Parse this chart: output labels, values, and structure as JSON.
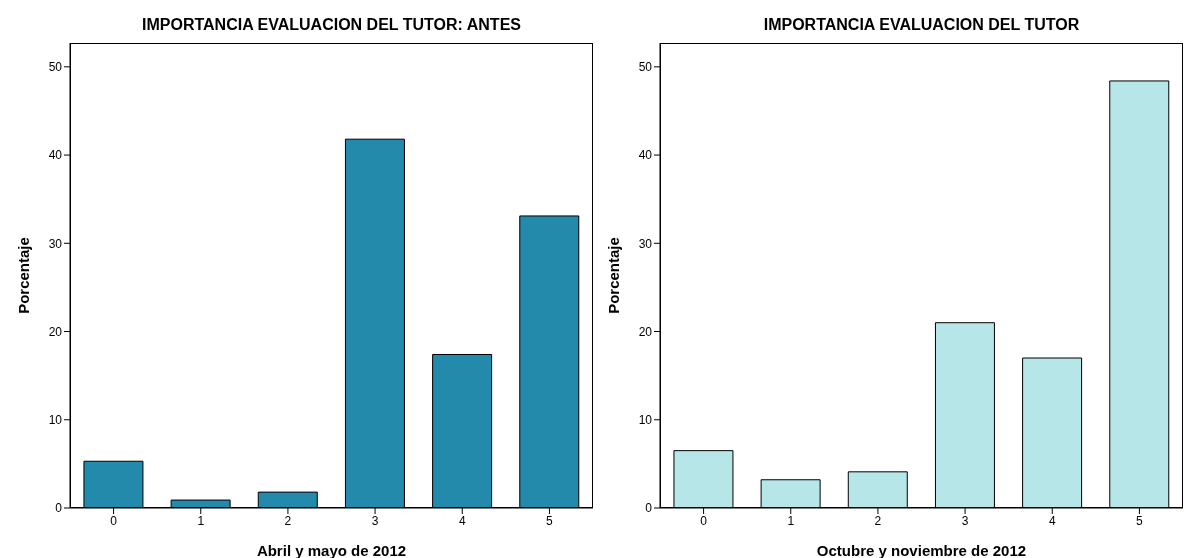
{
  "chart_data": [
    {
      "type": "bar",
      "title": "IMPORTANCIA EVALUACION DEL TUTOR: ANTES",
      "xlabel": "Abril y mayo de 2012",
      "ylabel": "Porcentaje",
      "categories": [
        "0",
        "1",
        "2",
        "3",
        "4",
        "5"
      ],
      "values": [
        5.3,
        0.9,
        1.8,
        41.8,
        17.4,
        33.1
      ],
      "color": "#238aab",
      "ylim": [
        0,
        52.7
      ],
      "yticks": [
        0,
        10,
        20,
        30,
        40,
        50
      ],
      "grid": false,
      "legend": false
    },
    {
      "type": "bar",
      "title": "IMPORTANCIA EVALUACION DEL TUTOR",
      "xlabel": "Octubre y noviembre de 2012",
      "ylabel": "Porcentaje",
      "categories": [
        "0",
        "1",
        "2",
        "3",
        "4",
        "5"
      ],
      "values": [
        6.5,
        3.2,
        4.1,
        21.0,
        17.0,
        48.4
      ],
      "color": "#b6e6e8",
      "ylim": [
        0,
        52.7
      ],
      "yticks": [
        0,
        10,
        20,
        30,
        40,
        50
      ],
      "grid": false,
      "legend": false
    }
  ]
}
